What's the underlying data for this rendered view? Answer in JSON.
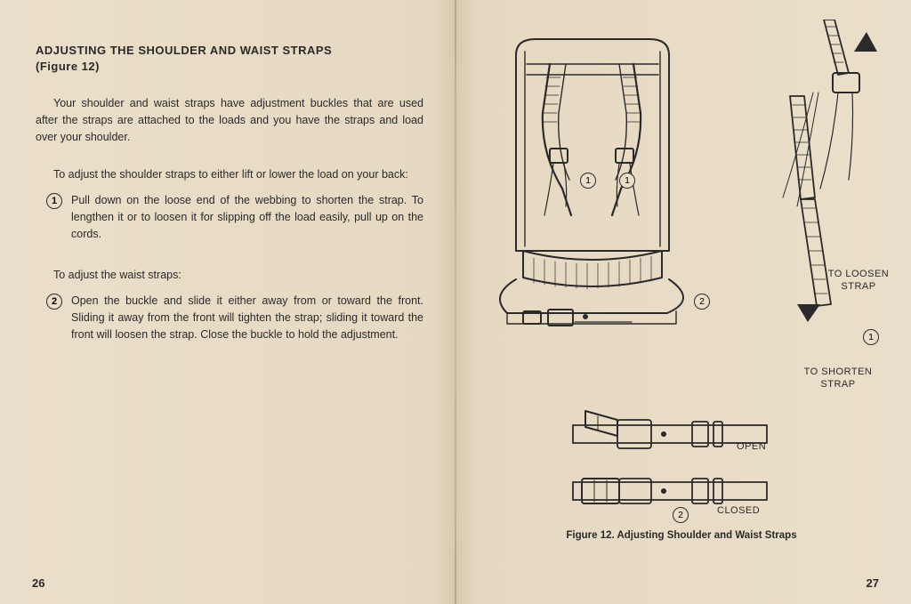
{
  "left": {
    "heading_line1": "ADJUSTING THE SHOULDER AND WAIST STRAPS",
    "heading_line2": "(Figure 12)",
    "intro": "Your shoulder and waist straps have adjustment buckles that are used after the straps are attached to the loads and you have the straps and load over your shoulder.",
    "shoulder_lead": "To adjust the shoulder straps to either lift or lower the load on your back:",
    "step1_num": "1",
    "step1_text": "Pull down on the loose end of the webbing to shorten the strap. To lengthen it or to loosen it for slipping off the load easily, pull up on the cords.",
    "waist_lead": "To adjust the waist straps:",
    "step2_num": "2",
    "step2_text": "Open the buckle and slide it either away from or toward the front. Sliding it away from the front will tighten the strap; sliding it toward the front will loosen the strap. Close the buckle to hold the adjustment.",
    "page_num": "26"
  },
  "right": {
    "callout_loosen": "TO LOOSEN\nSTRAP",
    "callout_shorten": "TO SHORTEN\nSTRAP",
    "callout_open": "OPEN",
    "callout_closed": "CLOSED",
    "callout_1": "1",
    "callout_1b": "1",
    "callout_1c": "1",
    "callout_2": "2",
    "callout_2b": "2",
    "figure_caption": "Figure 12.  Adjusting Shoulder and Waist Straps",
    "page_num": "27"
  },
  "style": {
    "paper_bg": "#eadfca",
    "ink": "#2a2a2a",
    "stroke_width_heavy": 2.2,
    "stroke_width_light": 1.2
  }
}
